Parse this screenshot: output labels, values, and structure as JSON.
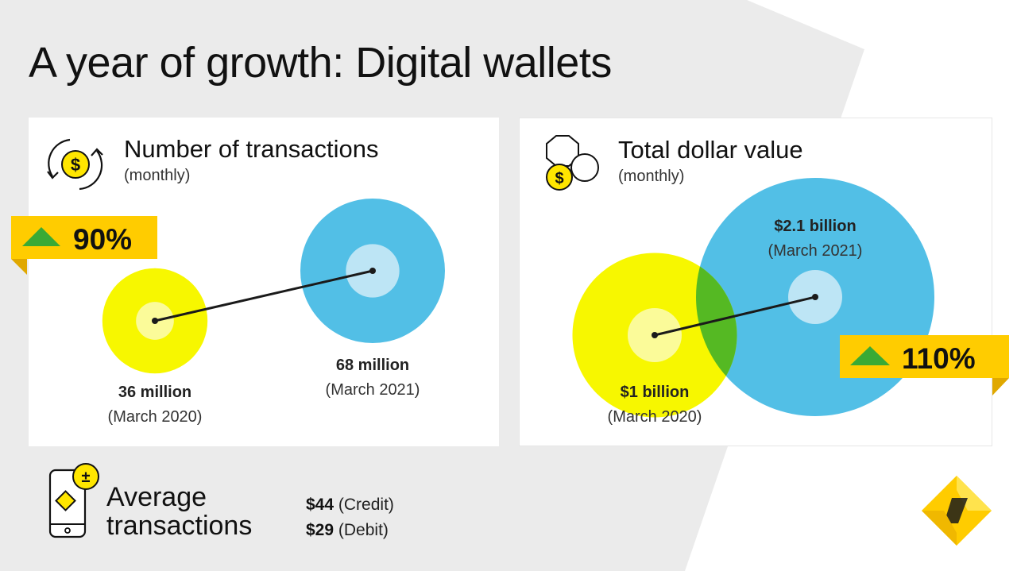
{
  "title": "A year of growth: Digital wallets",
  "colors": {
    "yellow": "#f7f700",
    "yellow_inner": "#fbfb99",
    "blue": "#52bfe6",
    "blue_inner": "#bde5f5",
    "overlap": "#55b923",
    "badge": "#ffcc00",
    "badge_fold": "#e0a800",
    "arrow": "#3aaa35",
    "background_shape": "#ebebeb"
  },
  "icons": {
    "transactions": "dollar-cycle-icon",
    "value": "coins-icon",
    "phone": "phone-plus-minus-icon",
    "logo": "bank-diamond-logo"
  },
  "chart_data": [
    {
      "type": "bubble",
      "title": "Number of transactions",
      "subtitle": "(monthly)",
      "change": "90%",
      "points": [
        {
          "label": "36 million",
          "date": "(March 2020)",
          "value": 36,
          "unit": "million"
        },
        {
          "label": "68 million",
          "date": "(March 2021)",
          "value": 68,
          "unit": "million"
        }
      ]
    },
    {
      "type": "bubble",
      "title": "Total dollar value",
      "subtitle": "(monthly)",
      "change": "110%",
      "points": [
        {
          "label": "$1 billion",
          "date": "(March 2020)",
          "value": 1,
          "unit": "billion"
        },
        {
          "label": "$2.1 billion",
          "date": "(March 2021)",
          "value": 2.1,
          "unit": "billion"
        }
      ]
    }
  ],
  "average": {
    "label_line1": "Average",
    "label_line2": "transactions",
    "credit_amount": "$44",
    "credit_label": "(Credit)",
    "debit_amount": "$29",
    "debit_label": "(Debit)"
  }
}
